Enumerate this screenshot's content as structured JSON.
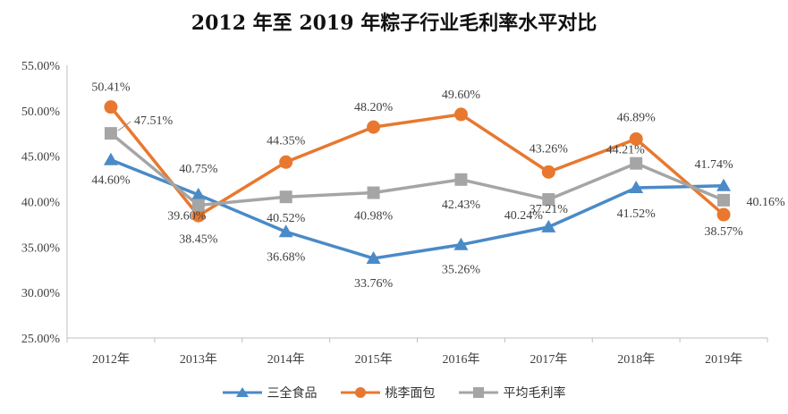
{
  "colors": {
    "sanquan": "#4a8ac7",
    "taoli": "#e8782f",
    "avg": "#a5a5a5",
    "axis": "#bfbfbf",
    "text": "#404040"
  },
  "chart_data": {
    "type": "line",
    "title": "2012 年至 2019 年粽子行业毛利率水平对比",
    "categories": [
      "2012年",
      "2013年",
      "2014年",
      "2015年",
      "2016年",
      "2017年",
      "2018年",
      "2019年"
    ],
    "ylim": [
      25,
      55
    ],
    "yticks": [
      "25.00%",
      "30.00%",
      "35.00%",
      "40.00%",
      "45.00%",
      "50.00%",
      "55.00%"
    ],
    "series": [
      {
        "name": "三全食品",
        "marker": "triangle",
        "color": "#4a8ac7",
        "values": [
          44.6,
          40.75,
          36.68,
          33.76,
          35.26,
          37.21,
          41.52,
          41.74
        ],
        "labels": [
          "44.60%",
          "40.75%",
          "36.68%",
          "33.76%",
          "35.26%",
          "37.21%",
          "41.52%",
          "41.74%"
        ]
      },
      {
        "name": "桃李面包",
        "marker": "circle",
        "color": "#e8782f",
        "values": [
          50.41,
          38.45,
          44.35,
          48.2,
          49.6,
          43.26,
          46.89,
          38.57
        ],
        "labels": [
          "50.41%",
          "38.45%",
          "44.35%",
          "48.20%",
          "49.60%",
          "43.26%",
          "46.89%",
          "38.57%"
        ]
      },
      {
        "name": "平均毛利率",
        "marker": "square",
        "color": "#a5a5a5",
        "values": [
          47.51,
          39.6,
          40.52,
          40.98,
          42.43,
          40.24,
          44.21,
          40.16
        ],
        "labels": [
          "47.51%",
          "39.60%",
          "40.52%",
          "40.98%",
          "42.43%",
          "40.24%",
          "44.21%",
          "40.16%"
        ]
      }
    ]
  }
}
